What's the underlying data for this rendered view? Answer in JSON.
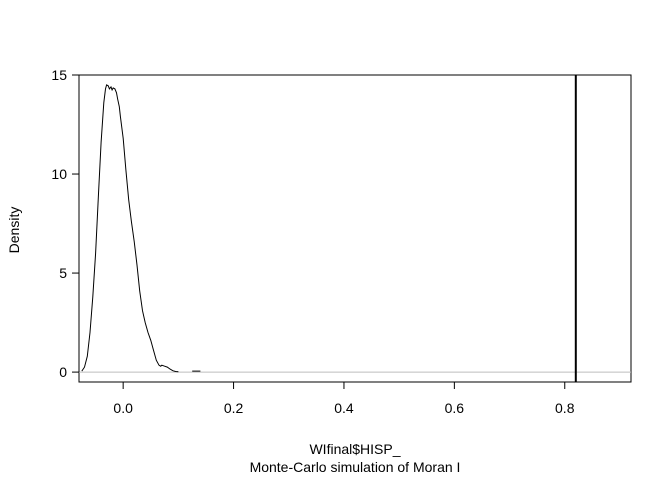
{
  "chart_data": {
    "type": "line",
    "title": "",
    "xlabel": "WIfinal$HISP_",
    "sublabel": "Monte-Carlo simulation of Moran I",
    "ylabel": "Density",
    "xlim": [
      -0.08,
      0.92
    ],
    "ylim": [
      -0.5,
      15
    ],
    "x_ticks": [
      0.0,
      0.2,
      0.4,
      0.6,
      0.8
    ],
    "x_tick_labels": [
      "0.0",
      "0.2",
      "0.4",
      "0.6",
      "0.8"
    ],
    "y_ticks": [
      0,
      5,
      10,
      15
    ],
    "y_tick_labels": [
      "0",
      "5",
      "10",
      "15"
    ],
    "grid": false,
    "reference_line_y": 0,
    "observed_statistic_x": 0.82,
    "series": [
      {
        "x": [
          -0.075,
          -0.07,
          -0.065,
          -0.06,
          -0.055,
          -0.05,
          -0.045,
          -0.04,
          -0.035,
          -0.032,
          -0.03,
          -0.027,
          -0.025,
          -0.022,
          -0.02,
          -0.018,
          -0.015,
          -0.012,
          -0.01,
          -0.007,
          -0.005,
          0.0,
          0.005,
          0.01,
          0.015,
          0.02,
          0.025,
          0.03,
          0.035,
          0.04,
          0.045,
          0.05,
          0.055,
          0.06,
          0.065,
          0.068,
          0.07,
          0.075,
          0.08,
          0.085,
          0.09,
          0.095,
          0.1
        ],
        "y": [
          0.05,
          0.25,
          0.8,
          2.0,
          3.8,
          6.0,
          8.8,
          11.6,
          13.6,
          14.3,
          14.5,
          14.45,
          14.3,
          14.4,
          14.25,
          14.35,
          14.3,
          14.1,
          13.8,
          13.4,
          12.9,
          11.8,
          10.2,
          8.7,
          7.6,
          6.6,
          5.4,
          4.1,
          3.1,
          2.5,
          2.0,
          1.6,
          1.1,
          0.6,
          0.35,
          0.3,
          0.35,
          0.3,
          0.25,
          0.15,
          0.07,
          0.03,
          0.02
        ]
      },
      {
        "x": [
          0.125,
          0.14
        ],
        "y": [
          0.05,
          0.05
        ]
      }
    ]
  }
}
